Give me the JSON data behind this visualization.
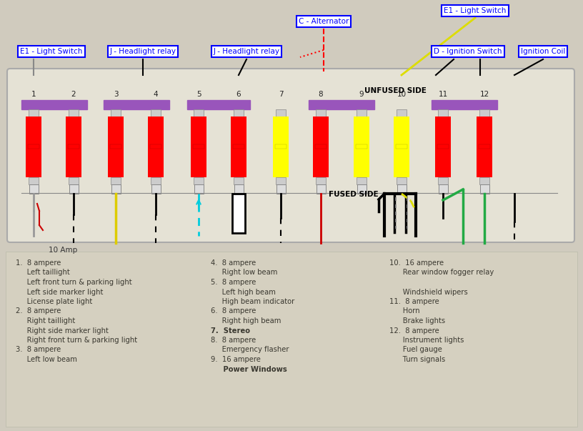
{
  "fuse_colors": [
    "red",
    "red",
    "red",
    "red",
    "red",
    "red",
    "yellow",
    "red",
    "yellow",
    "yellow",
    "red",
    "red"
  ],
  "bg_color": "#c8c4b4",
  "panel_bg": "#e8e5d8",
  "panel_edge": "#aaaaaa",
  "purple_bar": "#9955bb",
  "unfused_side_text": "UNFUSED SIDE",
  "fused_side_text": "FUSED SIDE",
  "ten_amp_text": "10 Amp",
  "col1_lines": [
    [
      "1.  8 ampere",
      false
    ],
    [
      "     Left taillight",
      false
    ],
    [
      "     Left front turn & parking light",
      false
    ],
    [
      "     Left side marker light",
      false
    ],
    [
      "     License plate light",
      false
    ],
    [
      "2.  8 ampere",
      false
    ],
    [
      "     Right taillight",
      false
    ],
    [
      "     Right side marker light",
      false
    ],
    [
      "     Right front turn & parking light",
      false
    ],
    [
      "3.  8 ampere",
      false
    ],
    [
      "     Left low beam",
      false
    ]
  ],
  "col2_lines": [
    [
      "4.  8 ampere",
      false
    ],
    [
      "     Right low beam",
      false
    ],
    [
      "5.  8 ampere",
      false
    ],
    [
      "     Left high beam",
      false
    ],
    [
      "     High beam indicator",
      false
    ],
    [
      "6.  8 ampere",
      false
    ],
    [
      "     Right high beam",
      false
    ],
    [
      "7.  Stereo",
      true
    ],
    [
      "8.  8 ampere",
      false
    ],
    [
      "     Emergency flasher",
      false
    ],
    [
      "9.  16 ampere",
      false
    ],
    [
      "     Power Windows",
      true
    ]
  ],
  "col3_lines": [
    [
      "10.  16 ampere",
      false
    ],
    [
      "      Rear window fogger relay",
      false
    ],
    [
      "",
      false
    ],
    [
      "      Windshield wipers",
      false
    ],
    [
      "11.  8 ampere",
      false
    ],
    [
      "      Horn",
      false
    ],
    [
      "      Brake lights",
      false
    ],
    [
      "12.  8 ampere",
      false
    ],
    [
      "      Instrument lights",
      false
    ],
    [
      "      Fuel gauge",
      false
    ],
    [
      "      Turn signals",
      false
    ]
  ]
}
